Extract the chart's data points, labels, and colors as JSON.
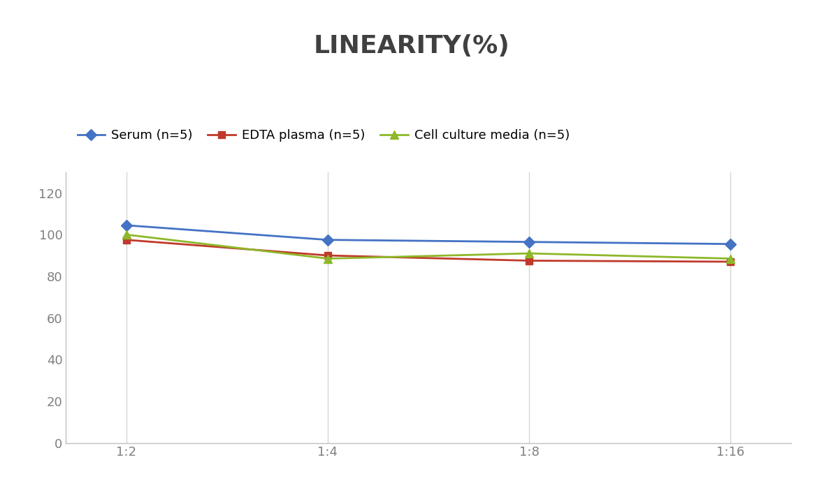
{
  "title": "LINEARITY(%)",
  "title_fontsize": 26,
  "title_fontweight": "bold",
  "title_color": "#404040",
  "x_labels": [
    "1:2",
    "1:4",
    "1:8",
    "1:16"
  ],
  "x_positions": [
    0,
    1,
    2,
    3
  ],
  "series": [
    {
      "label": "Serum (n=5)",
      "values": [
        104.5,
        97.5,
        96.5,
        95.5
      ],
      "color": "#4472C4",
      "marker": "D",
      "markersize": 8,
      "linewidth": 2
    },
    {
      "label": "EDTA plasma (n=5)",
      "values": [
        97.5,
        90.0,
        87.5,
        87.0
      ],
      "color": "#C0392B",
      "marker": "s",
      "markersize": 7,
      "linewidth": 2
    },
    {
      "label": "Cell culture media (n=5)",
      "values": [
        100.0,
        88.5,
        91.0,
        88.5
      ],
      "color": "#8DB829",
      "marker": "^",
      "markersize": 8,
      "linewidth": 2
    }
  ],
  "ylim": [
    0,
    130
  ],
  "yticks": [
    0,
    20,
    40,
    60,
    80,
    100,
    120
  ],
  "background_color": "#ffffff",
  "grid_color": "#d4d4d4",
  "legend_fontsize": 13,
  "tick_fontsize": 13,
  "tick_color": "#808080"
}
